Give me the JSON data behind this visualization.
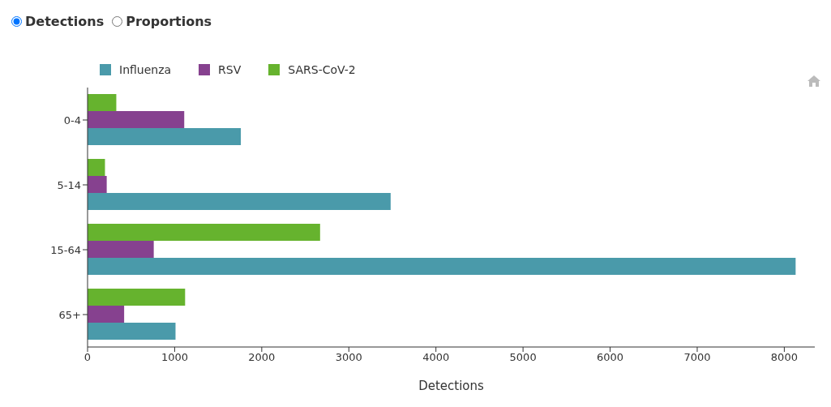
{
  "chart_data": {
    "type": "bar",
    "orientation": "horizontal",
    "annotations": [
      "Detections",
      "Proportions"
    ],
    "xlabel": "Detections",
    "categories": [
      "0-4",
      "5-14",
      "15-64",
      "65+"
    ],
    "series": [
      {
        "name": "Influenza",
        "color": "#4a9aaa",
        "values": [
          1760,
          3480,
          8130,
          1010
        ]
      },
      {
        "name": "RSV",
        "color": "#86418f",
        "values": [
          1110,
          220,
          760,
          420
        ]
      },
      {
        "name": "SARS-CoV-2",
        "color": "#66b32e",
        "values": [
          330,
          200,
          2670,
          1120
        ]
      }
    ],
    "xlim": [
      0,
      8350
    ],
    "xticks": [
      0,
      1000,
      2000,
      3000,
      4000,
      5000,
      6000,
      7000,
      8000
    ],
    "grid": false,
    "legend": "top left"
  }
}
